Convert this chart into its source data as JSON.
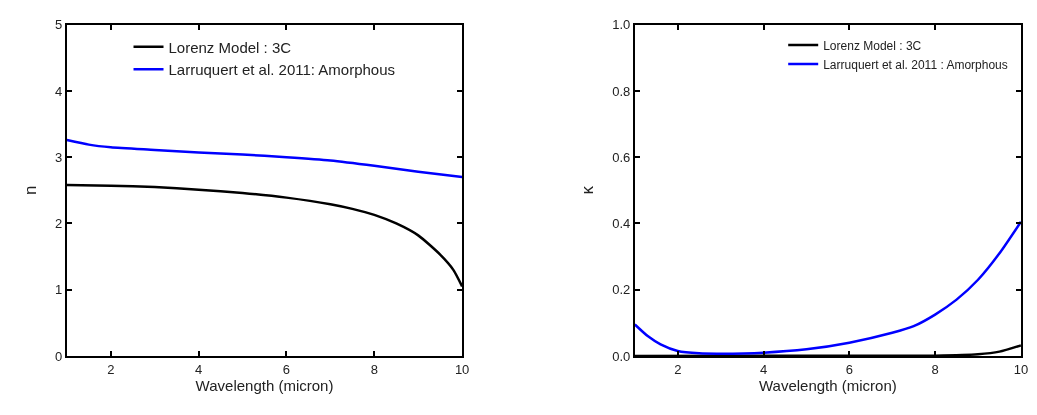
{
  "chart_data": [
    {
      "type": "line",
      "xlabel": "Wavelength (micron)",
      "ylabel": "n",
      "xlim": [
        1,
        10
      ],
      "xticks": [
        2,
        4,
        6,
        8,
        10
      ],
      "ylim": [
        0,
        5
      ],
      "yticks": [
        0,
        1,
        2,
        3,
        4,
        5
      ],
      "legend": "top",
      "marker": "none",
      "line_style": "solid",
      "series": [
        {
          "name": "Lorenz Model : 3C",
          "color": "#000000",
          "x": [
            1,
            2,
            3,
            4,
            5,
            6,
            7,
            7.5,
            8,
            8.5,
            9,
            9.5,
            9.8,
            10
          ],
          "values": [
            2.58,
            2.57,
            2.55,
            2.51,
            2.46,
            2.39,
            2.29,
            2.22,
            2.13,
            2.0,
            1.82,
            1.53,
            1.3,
            1.05
          ]
        },
        {
          "name": "Larruquert et al. 2011: Amorphous",
          "color": "#0000ff",
          "x": [
            1,
            1.5,
            2,
            3,
            4,
            5,
            6,
            7,
            8,
            9,
            10
          ],
          "values": [
            3.26,
            3.19,
            3.15,
            3.11,
            3.07,
            3.04,
            3.0,
            2.95,
            2.87,
            2.78,
            2.7
          ]
        }
      ]
    },
    {
      "type": "line",
      "xlabel": "Wavelength (micron)",
      "ylabel": "κ",
      "xlim": [
        1,
        10
      ],
      "xticks": [
        2,
        4,
        6,
        8,
        10
      ],
      "ylim": [
        0,
        1
      ],
      "yticks": [
        {
          "value": 0,
          "label": "0.0"
        },
        0.2,
        0.4,
        0.6,
        0.8,
        {
          "value": 1,
          "label": "1.0"
        }
      ],
      "legend": "top right",
      "marker": "none",
      "line_style": "solid",
      "series": [
        {
          "name": "Lorenz Model : 3C",
          "color": "#000000",
          "x": [
            1,
            8,
            9,
            9.5,
            10
          ],
          "values": [
            0,
            0.001,
            0.005,
            0.013,
            0.032
          ]
        },
        {
          "name": "Larruquert et al. 2011 : Amorphous",
          "color": "#0000ff",
          "x": [
            1,
            1.3,
            1.6,
            2,
            2.5,
            3,
            4,
            5,
            6,
            7,
            7.5,
            8,
            8.5,
            9,
            9.5,
            10
          ],
          "values": [
            0.095,
            0.06,
            0.035,
            0.015,
            0.008,
            0.007,
            0.01,
            0.02,
            0.04,
            0.07,
            0.09,
            0.125,
            0.17,
            0.23,
            0.31,
            0.405
          ]
        }
      ]
    }
  ]
}
